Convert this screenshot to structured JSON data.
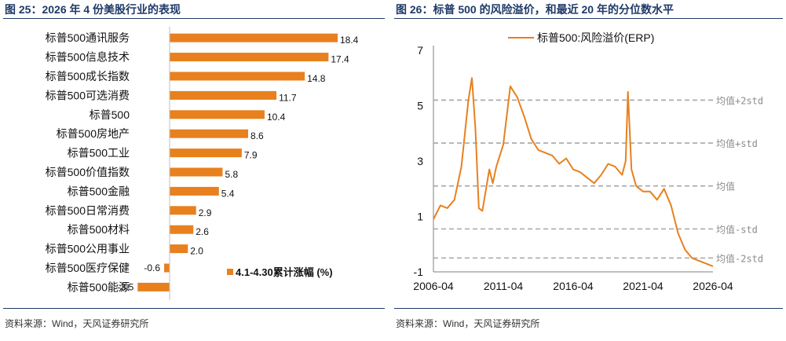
{
  "left_panel": {
    "title": "图 25：2026 年 4 份美股行业的表现",
    "source": "资料来源：Wind，天风证券研究所"
  },
  "right_panel": {
    "title": "图 26：标普 500 的风险溢价，和最近 20 年的分位数水平",
    "source": "资料来源：Wind，天风证券研究所"
  },
  "colors": {
    "bar": "#E8801E",
    "line": "#E8801E",
    "reference": "#A6A6A6",
    "title": "#1f3a68"
  },
  "chart_data": [
    {
      "type": "bar",
      "orientation": "horizontal",
      "categories": [
        "标普500通讯服务",
        "标普500信息技术",
        "标普500成长指数",
        "标普500可选消费",
        "标普500",
        "标普500房地产",
        "标普500工业",
        "标普500价值指数",
        "标普500金融",
        "标普500日常消费",
        "标普500材料",
        "标普500公用事业",
        "标普500医疗保健",
        "标普500能源"
      ],
      "values": [
        18.4,
        17.4,
        14.8,
        11.7,
        10.4,
        8.6,
        7.9,
        5.8,
        5.4,
        2.9,
        2.6,
        2.0,
        -0.6,
        -3.5
      ],
      "value_labels": [
        "18.4",
        "17.4",
        "14.8",
        "11.7",
        "10.4",
        "8.6",
        "7.9",
        "5.8",
        "5.4",
        "2.9",
        "2.6",
        "2.0",
        "-0.6",
        "-3.5"
      ],
      "series": [
        {
          "name": "4.1-4.30累计涨幅 (%)"
        }
      ],
      "xlim": [
        -3.5,
        18.4
      ],
      "legend_position": "bottom-right",
      "grid": false
    },
    {
      "type": "line",
      "series": [
        {
          "name": "标普500:风险溢价(ERP)",
          "x": [
            "2006-04",
            "2006-10",
            "2007-04",
            "2007-10",
            "2008-04",
            "2008-10",
            "2009-01",
            "2009-04",
            "2009-07",
            "2009-10",
            "2010-04",
            "2010-07",
            "2010-10",
            "2011-04",
            "2011-10",
            "2012-04",
            "2012-10",
            "2013-04",
            "2013-10",
            "2014-04",
            "2014-10",
            "2015-04",
            "2015-10",
            "2016-04",
            "2016-10",
            "2017-04",
            "2017-10",
            "2018-04",
            "2018-10",
            "2019-04",
            "2019-10",
            "2020-01",
            "2020-03",
            "2020-06",
            "2020-10",
            "2021-04",
            "2021-10",
            "2022-04",
            "2022-10",
            "2023-04",
            "2023-10",
            "2024-04",
            "2024-10",
            "2025-04",
            "2025-10",
            "2026-04"
          ],
          "y": [
            0.9,
            1.4,
            1.3,
            1.6,
            2.8,
            5.2,
            6.0,
            4.2,
            1.3,
            1.2,
            2.7,
            2.2,
            2.8,
            3.6,
            5.7,
            5.3,
            4.6,
            3.8,
            3.4,
            3.3,
            3.2,
            2.9,
            3.1,
            2.7,
            2.6,
            2.4,
            2.2,
            2.5,
            2.9,
            2.8,
            2.5,
            3.0,
            5.5,
            2.7,
            2.1,
            1.9,
            1.9,
            1.6,
            2.0,
            1.4,
            0.4,
            -0.2,
            -0.5,
            -0.6,
            -0.7,
            -0.8
          ]
        }
      ],
      "xticks": [
        "2006-04",
        "2011-04",
        "2016-04",
        "2021-04",
        "2026-04"
      ],
      "yticks": [
        7,
        5,
        3,
        1,
        -1
      ],
      "ylim": [
        -1,
        7
      ],
      "reference_lines": [
        {
          "label": "均值+2std",
          "value": 5.2
        },
        {
          "label": "均值+std",
          "value": 3.65
        },
        {
          "label": "均值",
          "value": 2.1
        },
        {
          "label": "均值-std",
          "value": 0.55
        },
        {
          "label": "均值-2std",
          "value": -0.5
        }
      ],
      "legend_position": "top",
      "grid": false
    }
  ]
}
